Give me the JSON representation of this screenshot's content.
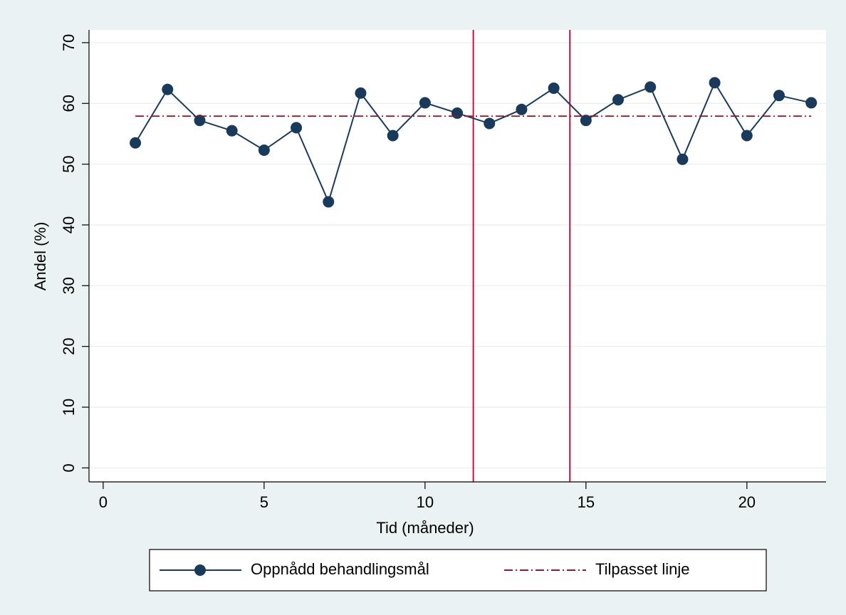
{
  "chart_data": {
    "type": "line",
    "x_label": "Tid (måneder)",
    "y_label": "Andel (%)",
    "xlim": [
      -0.44,
      22.46
    ],
    "ylim": [
      -2.3,
      72.1
    ],
    "xticks": [
      0,
      5,
      10,
      15,
      20
    ],
    "yticks": [
      0,
      10,
      20,
      30,
      40,
      50,
      60,
      70
    ],
    "grid": true,
    "series": [
      {
        "name": "Oppnådd behandlingsmål",
        "color": "#1a3a5c",
        "marker": true,
        "x": [
          1,
          2,
          3,
          4,
          5,
          6,
          7,
          8,
          9,
          10,
          11,
          12,
          13,
          14,
          15,
          16,
          17,
          18,
          19,
          20,
          21,
          22
        ],
        "values": [
          53.5,
          62.3,
          57.2,
          55.5,
          52.3,
          56,
          43.8,
          61.7,
          54.7,
          60.1,
          58.4,
          56.7,
          59,
          62.5,
          57.2,
          60.6,
          62.7,
          50.8,
          63.4,
          54.7,
          61.3,
          60.1
        ]
      },
      {
        "name": "Tilpasset linje",
        "color": "#8b1a2b",
        "marker": false,
        "dash": "12 4 2 4",
        "x": [
          1,
          22
        ],
        "values": [
          57.9,
          57.9
        ]
      }
    ],
    "reference_lines": {
      "x": [
        11.5,
        14.5
      ],
      "color": "#c0143c"
    }
  }
}
